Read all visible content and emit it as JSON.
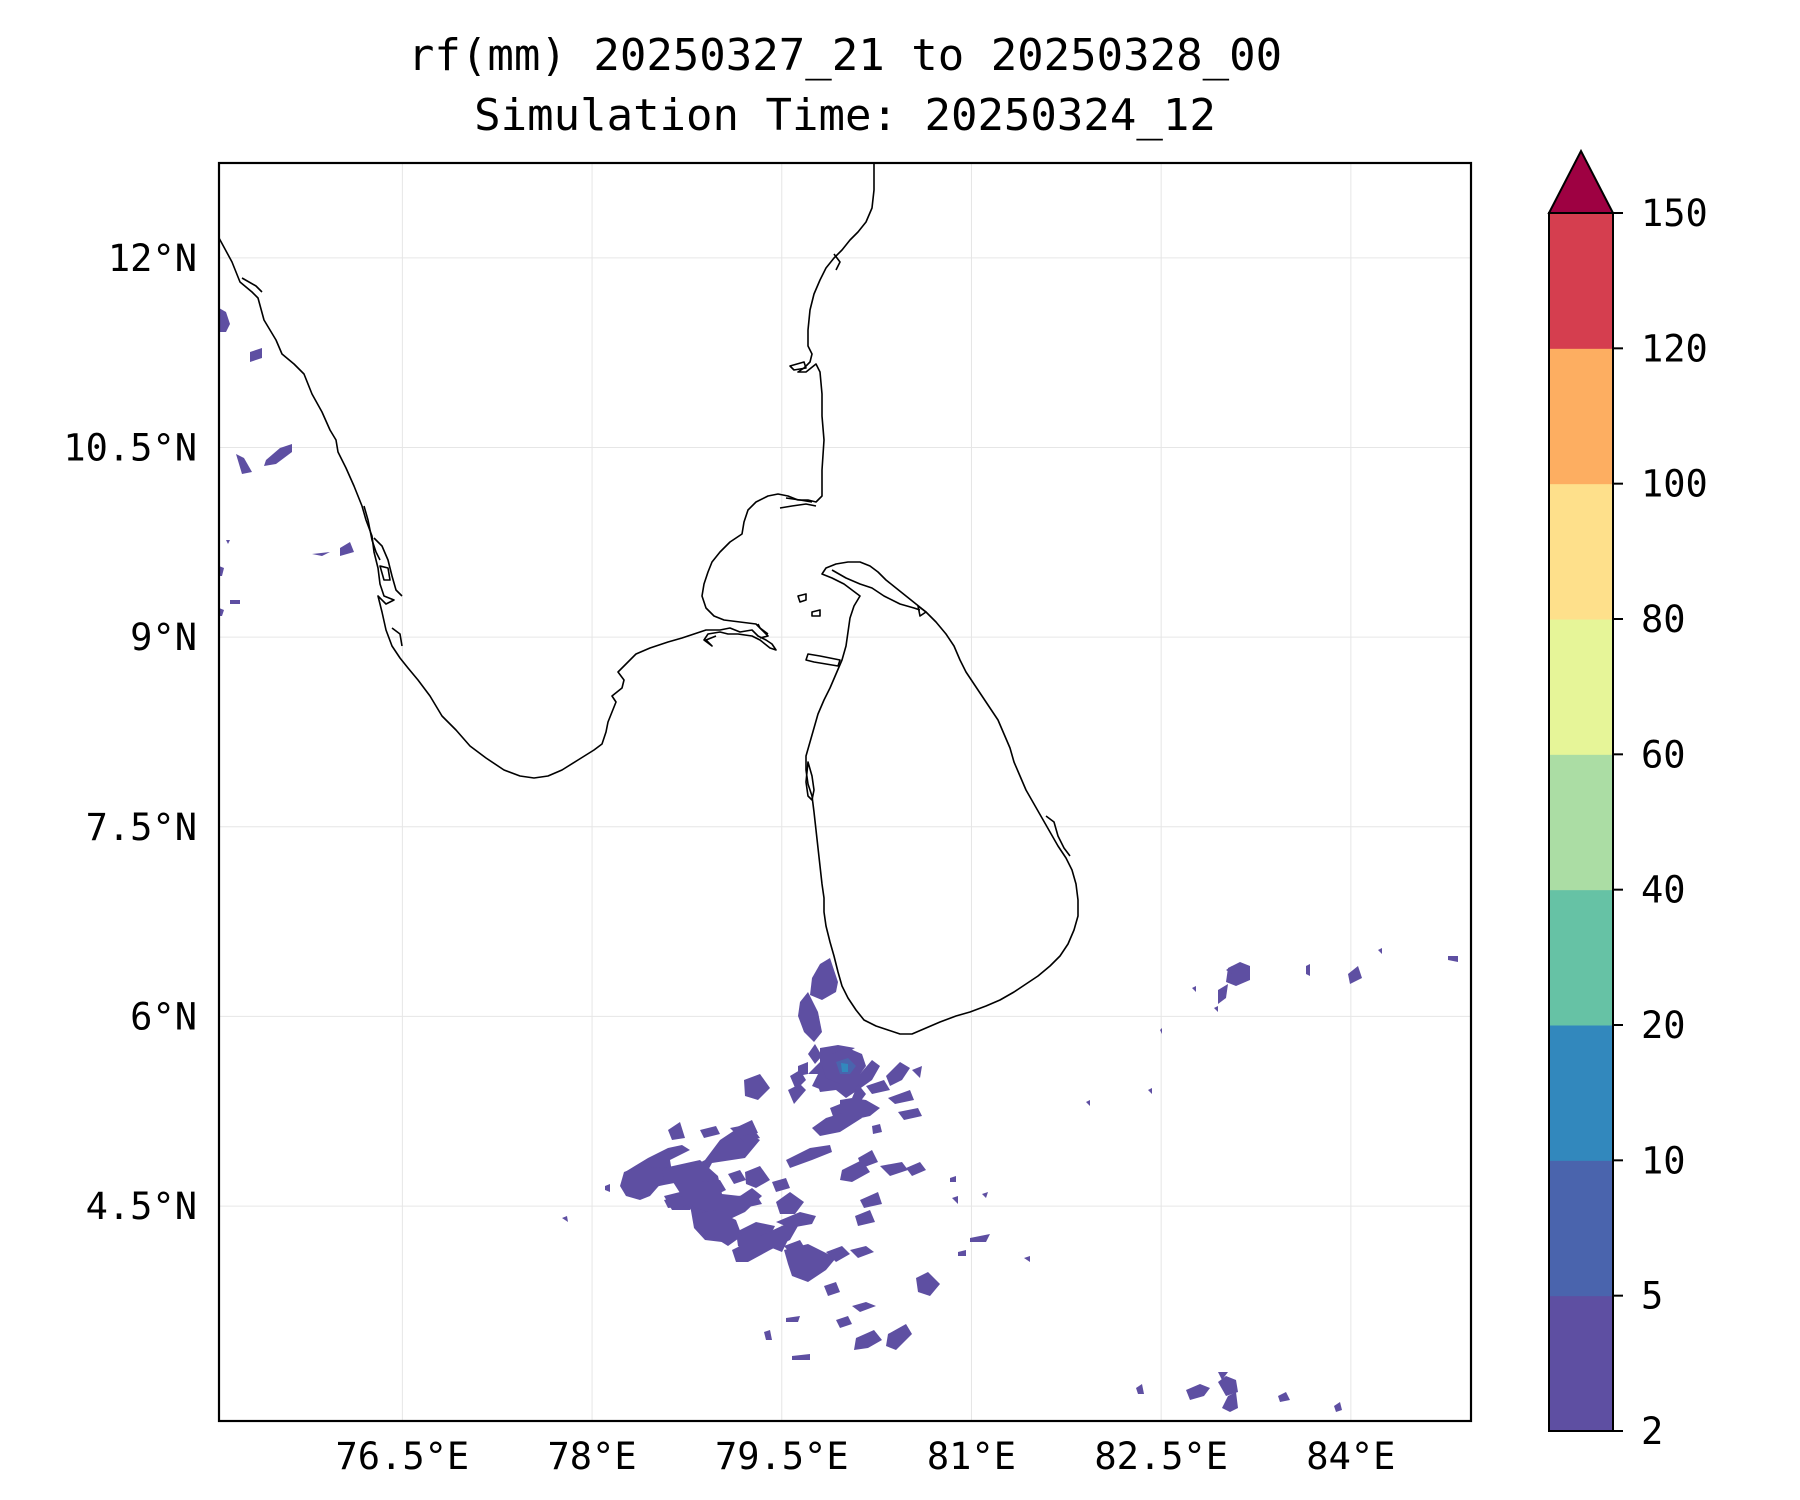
{
  "title": "rf(mm) 20250327_21 to 20250328_00",
  "subtitle": "Simulation Time: 20250324_12",
  "colors": {
    "coastline": "#000000",
    "gridline": "#e6e6e6",
    "extend_over": "#9e0142"
  },
  "map": {
    "extent": {
      "lon_min": 75.05,
      "lon_max": 84.95,
      "lat_min": 2.8,
      "lat_max": 12.75
    },
    "x_ticks": [
      {
        "value": 76.5,
        "label": "76.5°E"
      },
      {
        "value": 78.0,
        "label": "78°E"
      },
      {
        "value": 79.5,
        "label": "79.5°E"
      },
      {
        "value": 81.0,
        "label": "81°E"
      },
      {
        "value": 82.5,
        "label": "82.5°E"
      },
      {
        "value": 84.0,
        "label": "84°E"
      }
    ],
    "y_ticks": [
      {
        "value": 12.0,
        "label": "12°N"
      },
      {
        "value": 10.5,
        "label": "10.5°N"
      },
      {
        "value": 9.0,
        "label": "9°N"
      },
      {
        "value": 7.5,
        "label": "7.5°N"
      },
      {
        "value": 6.0,
        "label": "6°N"
      },
      {
        "value": 4.5,
        "label": "4.5°N"
      }
    ],
    "grid": true
  },
  "colorbar": {
    "levels": [
      "2",
      "5",
      "10",
      "20",
      "40",
      "60",
      "80",
      "100",
      "120",
      "150"
    ],
    "colors": [
      "#5e4fa2",
      "#4a64ad",
      "#3288bd",
      "#66c2a5",
      "#abdda4",
      "#e6f598",
      "#fee08b",
      "#fdae61",
      "#d53e4f"
    ],
    "extend": "max"
  },
  "chart_data": {
    "type": "heatmap",
    "title": "rf(mm) 20250327_21 to 20250328_00",
    "subtitle": "Simulation Time: 20250324_12",
    "xlim": [
      75.05,
      84.95
    ],
    "ylim": [
      2.8,
      12.75
    ],
    "rain_regions": [
      {
        "name": "south of Sri Lanka cluster",
        "lon_range": [
          78.0,
          80.6
        ],
        "lat_range": [
          3.8,
          6.7
        ],
        "max_class": "10-20",
        "peak": {
          "lon": 79.7,
          "lat": 5.7
        }
      },
      {
        "name": "southeast cluster",
        "lon_range": [
          82.5,
          84.7
        ],
        "lat_range": [
          2.8,
          6.5
        ],
        "max_class": "2-5"
      },
      {
        "name": "west coast India cells",
        "lon_range": [
          75.05,
          76.1
        ],
        "lat_range": [
          9.5,
          11.7
        ],
        "max_class": "2-5"
      }
    ]
  }
}
